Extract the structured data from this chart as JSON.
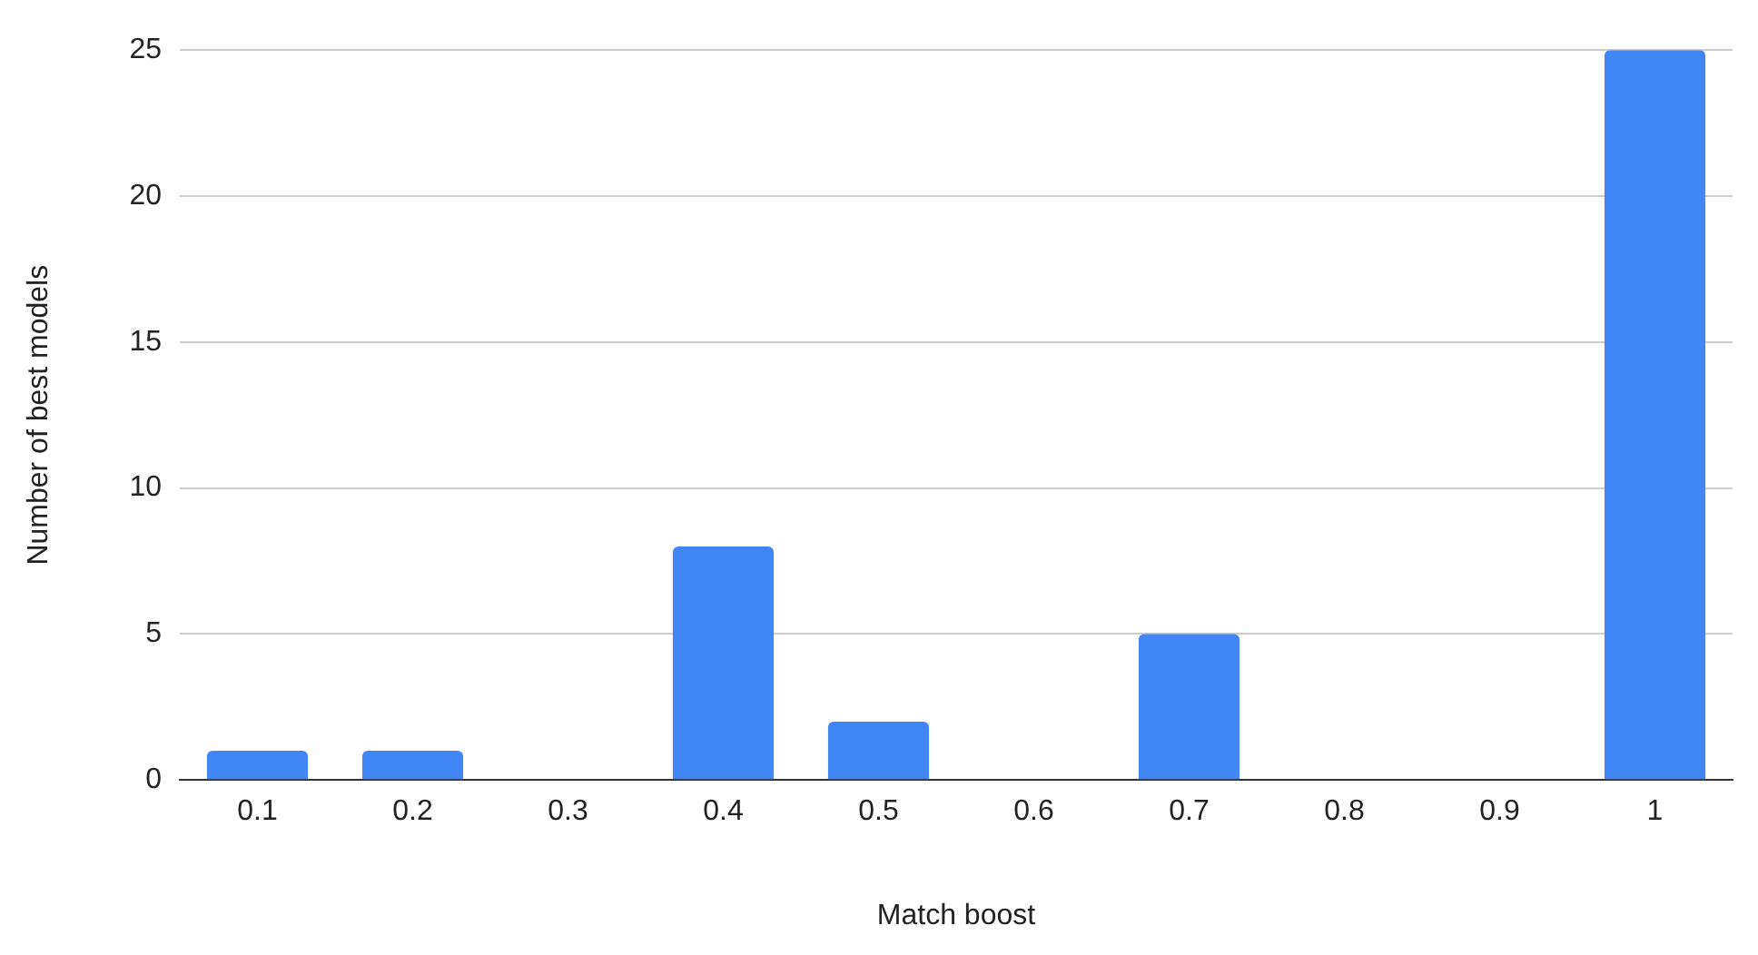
{
  "chart_data": {
    "type": "bar",
    "xlabel": "Match boost",
    "ylabel": "Number of best models",
    "categories": [
      "0.1",
      "0.2",
      "0.3",
      "0.4",
      "0.5",
      "0.6",
      "0.7",
      "0.8",
      "0.9",
      "1"
    ],
    "values": [
      1,
      1,
      0,
      8,
      2,
      0,
      5,
      0,
      0,
      25
    ],
    "color": "#4285f4",
    "ylim": [
      0,
      25
    ],
    "yticks": [
      0,
      5,
      10,
      15,
      20,
      25
    ],
    "grid": "y",
    "legend": false
  }
}
